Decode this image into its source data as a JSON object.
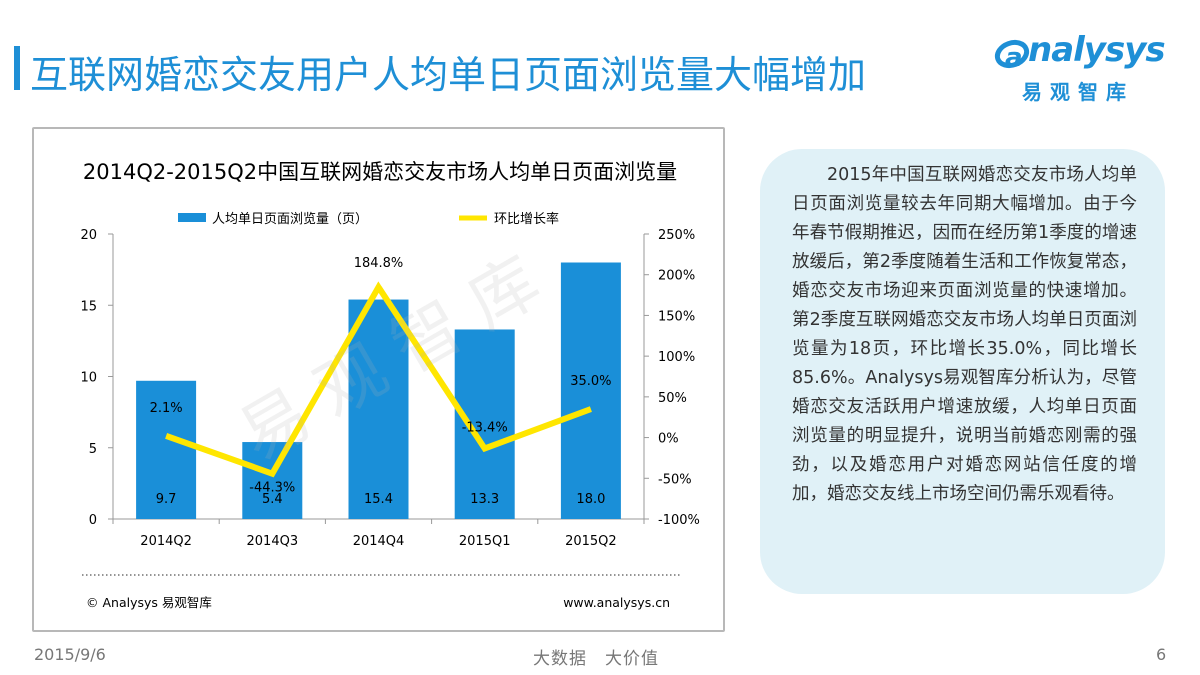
{
  "page_title": "互联网婚恋交友用户人均单日页面浏览量大幅增加",
  "logo": {
    "word": "nalysys",
    "letter": "a",
    "cn": "易观智库"
  },
  "watermark": "易观智库",
  "chart_data": {
    "type": "bar",
    "title": "2014Q2-2015Q2中国互联网婚恋交友市场人均单日页面浏览量",
    "categories": [
      "2014Q2",
      "2014Q3",
      "2014Q4",
      "2015Q1",
      "2015Q2"
    ],
    "series": [
      {
        "name": "人均单日页面浏览量（页）",
        "kind": "bar",
        "axis": "left",
        "values": [
          9.7,
          5.4,
          15.4,
          13.3,
          18.0
        ],
        "labels": [
          "9.7",
          "5.4",
          "15.4",
          "13.3",
          "18.0"
        ]
      },
      {
        "name": "环比增长率",
        "kind": "line",
        "axis": "right",
        "values": [
          2.1,
          -44.3,
          184.8,
          -13.4,
          35.0
        ],
        "labels": [
          "2.1%",
          "-44.3%",
          "184.8%",
          "-13.4%",
          "35.0%"
        ]
      }
    ],
    "y_left": {
      "min": 0,
      "max": 20,
      "ticks": [
        "0",
        "5",
        "10",
        "15",
        "20"
      ],
      "tick_values": [
        0,
        5,
        10,
        15,
        20
      ]
    },
    "y_right": {
      "min": -100,
      "max": 250,
      "ticks": [
        "-100%",
        "-50%",
        "0%",
        "50%",
        "100%",
        "150%",
        "200%",
        "250%"
      ],
      "tick_values": [
        -100,
        -50,
        0,
        50,
        100,
        150,
        200,
        250
      ]
    },
    "source": "© Analysys 易观智库",
    "website": "www.analysys.cn",
    "colors": {
      "bar": "#1a8fd8",
      "line": "#ffe600"
    }
  },
  "panel_text": "2015年中国互联网婚恋交友市场人均单日页面浏览量较去年同期大幅增加。由于今年春节假期推迟，因而在经历第1季度的增速放缓后，第2季度随着生活和工作恢复常态，婚恋交友市场迎来页面浏览量的快速增加。第2季度互联网婚恋交友市场人均单日页面浏览量为18页，环比增长35.0%，同比增长85.6%。Analysys易观智库分析认为，尽管婚恋交友活跃用户增速放缓，人均单日页面浏览量的明显提升，说明当前婚恋刚需的强劲，以及婚恋用户对婚恋网站信任度的增加，婚恋交友线上市场空间仍需乐观看待。",
  "footer": {
    "date": "2015/9/6",
    "slogan": "大数据　大价值",
    "page": "6"
  }
}
